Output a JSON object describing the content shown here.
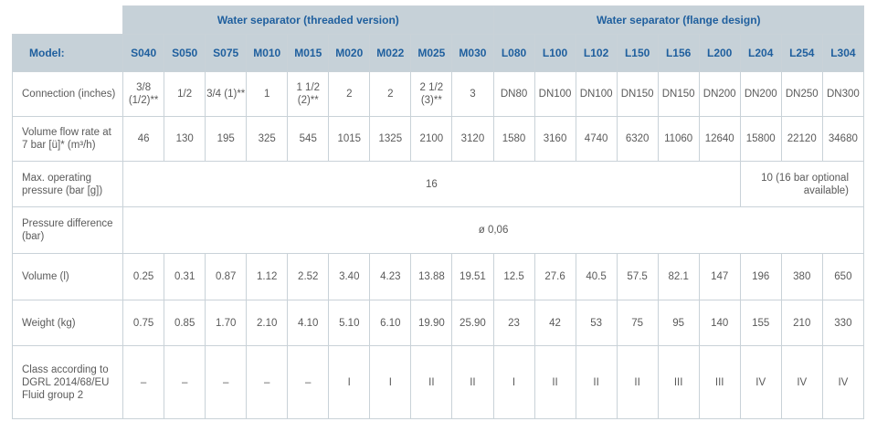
{
  "groups": {
    "threaded": "Water separator (threaded version)",
    "flange": "Water separator (flange design)"
  },
  "model_label": "Model:",
  "models": [
    "S040",
    "S050",
    "S075",
    "M010",
    "M015",
    "M020",
    "M022",
    "M025",
    "M030",
    "L080",
    "L100",
    "L102",
    "L150",
    "L156",
    "L200",
    "L204",
    "L254",
    "L304"
  ],
  "rows": {
    "connection": {
      "label": "Connection (inches)",
      "values": [
        "3/8 (1/2)**",
        "1/2",
        "3/4 (1)**",
        "1",
        "1 1/2 (2)**",
        "2",
        "2",
        "2 1/2 (3)**",
        "3",
        "DN80",
        "DN100",
        "DN100",
        "DN150",
        "DN150",
        "DN200",
        "DN200",
        "DN250",
        "DN300"
      ]
    },
    "flow": {
      "label": "Volume flow rate at 7 bar [ü]* (m³/h)",
      "values": [
        "46",
        "130",
        "195",
        "325",
        "545",
        "1015",
        "1325",
        "2100",
        "3120",
        "1580",
        "3160",
        "4740",
        "6320",
        "11060",
        "12640",
        "15800",
        "22120",
        "34680"
      ]
    },
    "pressure": {
      "label": "Max. operating pressure (bar [g])",
      "value_main": "16",
      "value_right": "10 (16 bar optional available)"
    },
    "difference": {
      "label": "Pressure difference (bar)",
      "value": "ø 0,06"
    },
    "volume": {
      "label": "Volume (l)",
      "values": [
        "0.25",
        "0.31",
        "0.87",
        "1.12",
        "2.52",
        "3.40",
        "4.23",
        "13.88",
        "19.51",
        "12.5",
        "27.6",
        "40.5",
        "57.5",
        "82.1",
        "147",
        "196",
        "380",
        "650"
      ]
    },
    "weight": {
      "label": "Weight (kg)",
      "values": [
        "0.75",
        "0.85",
        "1.70",
        "2.10",
        "4.10",
        "5.10",
        "6.10",
        "19.90",
        "25.90",
        "23",
        "42",
        "53",
        "75",
        "95",
        "140",
        "155",
        "210",
        "330"
      ]
    },
    "class": {
      "label": "Class according to DGRL 2014/68/EU Fluid group 2",
      "values": [
        "–",
        "–",
        "–",
        "–",
        "–",
        "I",
        "I",
        "II",
        "II",
        "I",
        "II",
        "II",
        "II",
        "III",
        "III",
        "IV",
        "IV",
        "IV"
      ]
    }
  }
}
